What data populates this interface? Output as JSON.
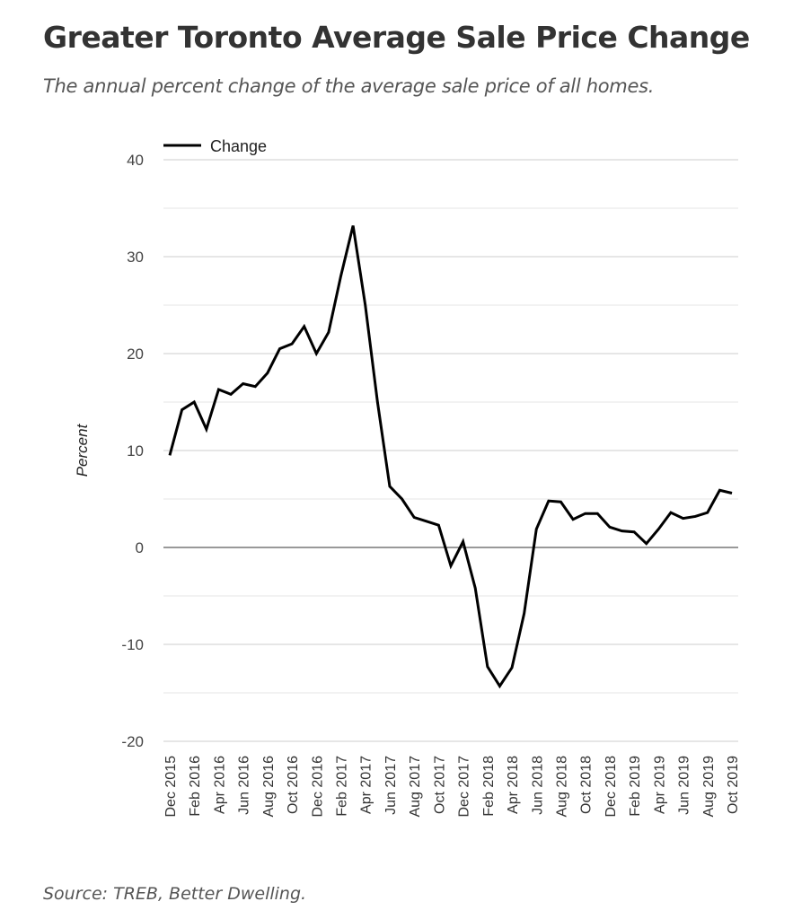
{
  "chart_data": {
    "type": "line",
    "title": "Greater Toronto Average Sale Price Change",
    "subtitle": "The annual percent change of the average sale price of all homes.",
    "source": "Source: TREB, Better Dwelling.",
    "ylabel": "Percent",
    "xlabel": "",
    "ylim": [
      -20,
      40
    ],
    "yticks": [
      -20,
      -10,
      0,
      10,
      20,
      30,
      40
    ],
    "legend": {
      "label": "Change",
      "placement": "top-left"
    },
    "x": [
      "Dec 2015",
      "Jan 2016",
      "Feb 2016",
      "Mar 2016",
      "Apr 2016",
      "May 2016",
      "Jun 2016",
      "Jul 2016",
      "Aug 2016",
      "Sep 2016",
      "Oct 2016",
      "Nov 2016",
      "Dec 2016",
      "Jan 2017",
      "Feb 2017",
      "Mar 2017",
      "Apr 2017",
      "May 2017",
      "Jun 2017",
      "Jul 2017",
      "Aug 2017",
      "Sep 2017",
      "Oct 2017",
      "Nov 2017",
      "Dec 2017",
      "Jan 2018",
      "Feb 2018",
      "Mar 2018",
      "Apr 2018",
      "May 2018",
      "Jun 2018",
      "Jul 2018",
      "Aug 2018",
      "Sep 2018",
      "Oct 2018",
      "Nov 2018",
      "Dec 2018",
      "Jan 2019",
      "Feb 2019",
      "Mar 2019",
      "Apr 2019",
      "May 2019",
      "Jun 2019",
      "Jul 2019",
      "Aug 2019",
      "Sep 2019",
      "Oct 2019"
    ],
    "series": [
      {
        "name": "Change",
        "color": "#000000",
        "values": [
          9.5,
          14.2,
          15.0,
          12.2,
          16.3,
          15.8,
          16.9,
          16.6,
          18.0,
          20.5,
          21.0,
          22.8,
          20.0,
          22.2,
          28.0,
          33.2,
          25.0,
          15.0,
          6.3,
          5.0,
          3.1,
          2.7,
          2.3,
          -1.9,
          0.6,
          -4.2,
          -12.3,
          -14.3,
          -12.4,
          -6.8,
          1.9,
          4.8,
          4.7,
          2.9,
          3.5,
          3.5,
          2.1,
          1.7,
          1.6,
          0.4,
          1.9,
          3.6,
          3.0,
          3.2,
          3.6,
          5.9,
          5.6
        ]
      }
    ],
    "grid": true
  }
}
